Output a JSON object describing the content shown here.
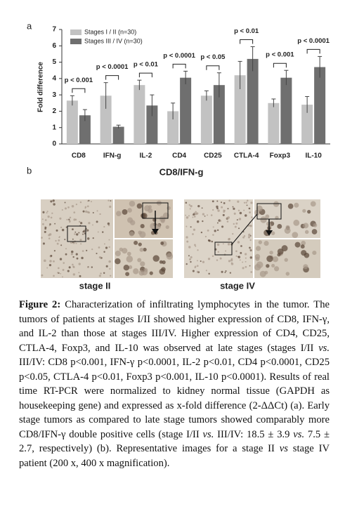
{
  "chart_data": {
    "type": "bar",
    "panel_label": "a",
    "ylabel": "Fold difference",
    "categories": [
      "CD8",
      "IFN-g",
      "IL-2",
      "CD4",
      "CD25",
      "CTLA-4",
      "Foxp3",
      "IL-10"
    ],
    "series": [
      {
        "name": "Stages I / II (n=30)",
        "color": "#c2c2c2",
        "values": [
          2.65,
          2.95,
          3.6,
          2.0,
          2.95,
          4.2,
          2.5,
          2.4
        ],
        "errors": [
          0.3,
          0.8,
          0.3,
          0.5,
          0.3,
          0.85,
          0.25,
          0.5
        ]
      },
      {
        "name": "Stages III / IV (n=30)",
        "color": "#6f6f6f",
        "values": [
          1.75,
          1.05,
          2.35,
          4.05,
          3.6,
          5.2,
          4.05,
          4.7
        ],
        "errors": [
          0.35,
          0.1,
          0.65,
          0.4,
          0.75,
          0.75,
          0.45,
          0.65
        ]
      }
    ],
    "annotations": [
      "p < 0.001",
      "p < 0.0001",
      "p < 0.01",
      "p < 0.0001",
      "p < 0.05",
      "p < 0.01",
      "p < 0.001",
      "p < 0.0001"
    ],
    "ylim": [
      0,
      7
    ],
    "yticks": [
      0,
      1,
      2,
      3,
      4,
      5,
      6,
      7
    ],
    "legend": "upper left"
  },
  "panel_b": {
    "label": "b",
    "title": "CD8/IFN-g",
    "left_label": "stage II",
    "right_label": "stage IV"
  },
  "caption": {
    "label": "Figure 2:",
    "segments": [
      " Characterization of infiltrating lymphocytes in the tumor. The tumors of patients at stages I/II showed higher expression of CD8, IFN-γ, and IL-2 than those at stages III/IV. Higher expression of CD4, CD25, CTLA-4, Foxp3, and IL-10 was observed at late stages (stages I/II ",
      "vs.",
      " III/IV: CD8 p<0.001, IFN-γ p<0.0001, IL-2 p<0.01, CD4 p<0.0001, CD25 p<0.05, CTLA-4 p<0.01, Foxp3 p<0.001, IL-10 p<0.0001). Results of real time RT-PCR were normalized to kidney normal tissue (GAPDH as housekeeping gene) and expressed as x-fold difference (2-ΔΔCt) (a). Early stage tumors as compared to late stage tumors showed comparably more CD8/IFN-γ double positive cells (stage I/II ",
      "vs.",
      " III/IV: 18.5 ± 3.9 ",
      "vs.",
      " 7.5 ± 2.7, respectively) (b). Representative images for a stage II ",
      "vs",
      " stage IV patient (200 x, 400 x magnification)."
    ]
  }
}
